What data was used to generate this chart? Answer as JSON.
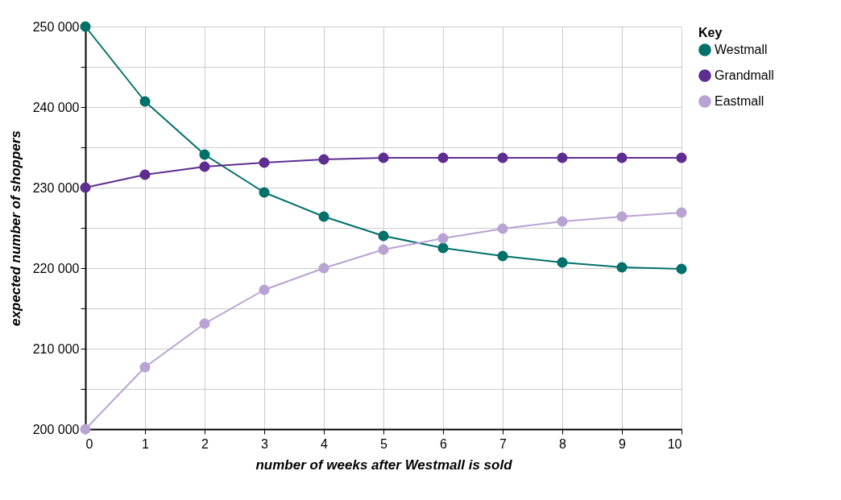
{
  "chart_data": {
    "type": "line",
    "xlabel": "number of weeks after Westmall is sold",
    "ylabel": "expected number of shoppers",
    "legend_title": "Key",
    "x": [
      0,
      1,
      2,
      3,
      4,
      5,
      6,
      7,
      8,
      9,
      10
    ],
    "series": [
      {
        "name": "Westmall",
        "color": "#00706b",
        "values": [
          250000,
          240700,
          234100,
          229400,
          226400,
          224000,
          222500,
          221500,
          220700,
          220100,
          219900
        ]
      },
      {
        "name": "Grandmall",
        "color": "#5e2d91",
        "values": [
          230000,
          231600,
          232600,
          233100,
          233500,
          233700,
          233700,
          233700,
          233700,
          233700,
          233700
        ]
      },
      {
        "name": "Eastmall",
        "color": "#b9a3d3",
        "values": [
          200000,
          207700,
          213100,
          217300,
          220000,
          222300,
          223700,
          224900,
          225800,
          226400,
          226900
        ]
      }
    ],
    "xlim": [
      0,
      10
    ],
    "xticks": [
      0,
      1,
      2,
      3,
      4,
      5,
      6,
      7,
      8,
      9,
      10
    ],
    "ylim": [
      200000,
      250000
    ],
    "yticks": [
      {
        "value": 200000,
        "label": "200 000"
      },
      {
        "value": 205000,
        "label": null
      },
      {
        "value": 210000,
        "label": "210 000"
      },
      {
        "value": 215000,
        "label": null
      },
      {
        "value": 220000,
        "label": "220 000"
      },
      {
        "value": 225000,
        "label": null
      },
      {
        "value": 230000,
        "label": "230 000"
      },
      {
        "value": 235000,
        "label": null
      },
      {
        "value": 240000,
        "label": "240 000"
      },
      {
        "value": 245000,
        "label": null
      },
      {
        "value": 250000,
        "label": "250 000"
      }
    ],
    "grid": true,
    "legend": "top right",
    "marker": "circle",
    "line_style": "solid"
  }
}
